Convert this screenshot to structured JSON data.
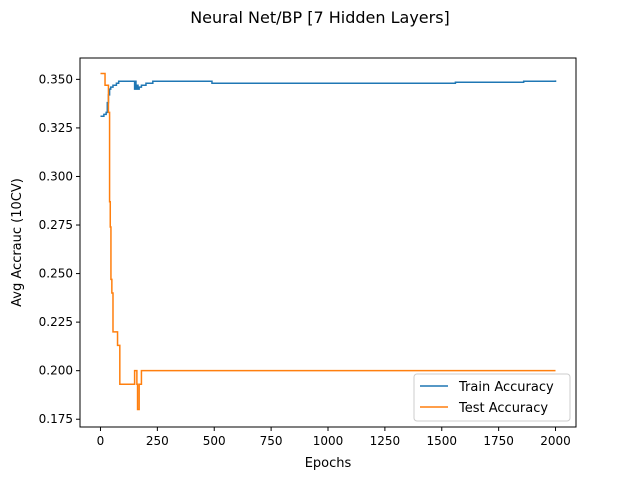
{
  "chart_data": {
    "type": "line",
    "title": "Neural Net/BP [7 Hidden Layers]",
    "xlabel": "Epochs",
    "ylabel": "Avg Accrauc (10CV)",
    "xlim": [
      -90,
      2090
    ],
    "ylim": [
      0.171,
      0.361
    ],
    "xticks": [
      0,
      250,
      500,
      750,
      1000,
      1250,
      1500,
      1750,
      2000
    ],
    "xtick_labels": [
      "0",
      "250",
      "500",
      "750",
      "1000",
      "1250",
      "1500",
      "1750",
      "2000"
    ],
    "yticks": [
      0.175,
      0.2,
      0.225,
      0.25,
      0.275,
      0.3,
      0.325,
      0.35
    ],
    "ytick_labels": [
      "0.175",
      "0.200",
      "0.225",
      "0.250",
      "0.275",
      "0.300",
      "0.325",
      "0.350"
    ],
    "grid": false,
    "legend_position": "lower-right",
    "series": [
      {
        "name": "Train Accuracy",
        "color": "#1f77b4",
        "step": true,
        "x": [
          0,
          15,
          25,
          30,
          35,
          40,
          45,
          55,
          70,
          80,
          100,
          150,
          153,
          156,
          160,
          165,
          170,
          180,
          200,
          230,
          490,
          1560,
          1860,
          2000
        ],
        "y": [
          0.331,
          0.332,
          0.333,
          0.338,
          0.342,
          0.345,
          0.346,
          0.347,
          0.348,
          0.349,
          0.349,
          0.345,
          0.349,
          0.345,
          0.347,
          0.345,
          0.346,
          0.347,
          0.348,
          0.349,
          0.348,
          0.3485,
          0.349,
          0.3495
        ]
      },
      {
        "name": "Test Accuracy",
        "color": "#ff7f0e",
        "step": true,
        "x": [
          0,
          20,
          35,
          40,
          43,
          46,
          50,
          55,
          75,
          85,
          150,
          160,
          163,
          170,
          180,
          2000
        ],
        "y": [
          0.353,
          0.347,
          0.333,
          0.287,
          0.274,
          0.247,
          0.24,
          0.22,
          0.213,
          0.193,
          0.2,
          0.193,
          0.18,
          0.193,
          0.2,
          0.2
        ]
      }
    ]
  }
}
